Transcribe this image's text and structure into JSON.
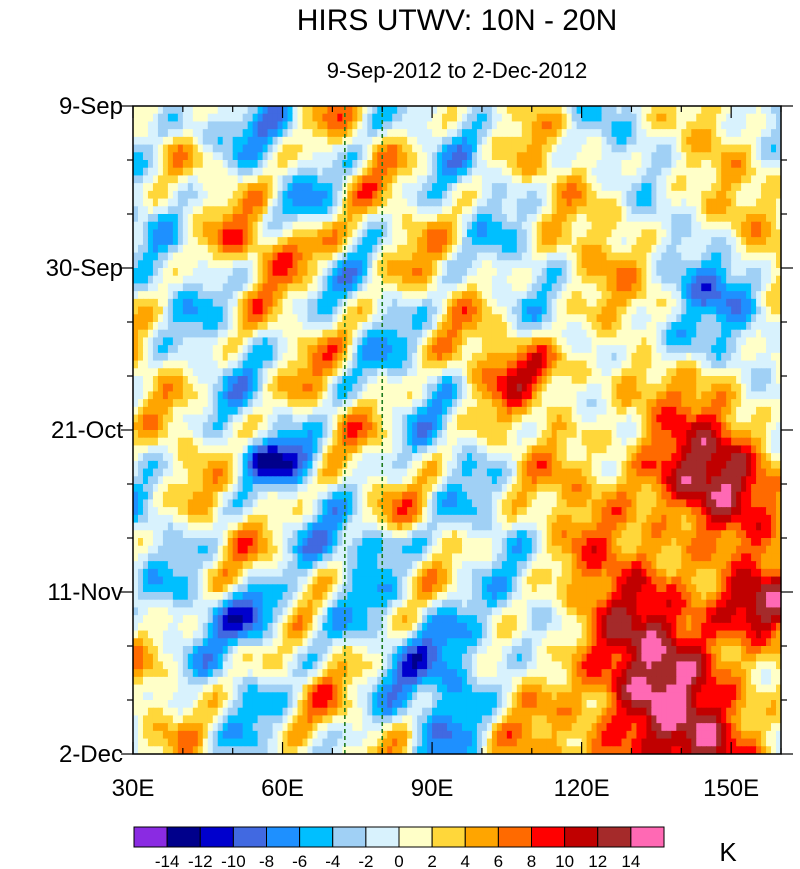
{
  "chart_data": {
    "type": "heatmap",
    "title": "HIRS UTWV: 10N - 20N",
    "subtitle": "9-Sep-2012 to 2-Dec-2012",
    "xlabel": "",
    "ylabel": "",
    "x_range": [
      30,
      160
    ],
    "y_range_days": [
      0,
      84
    ],
    "x_ticks": [
      {
        "value": 30,
        "label": "30E"
      },
      {
        "value": 60,
        "label": "60E"
      },
      {
        "value": 90,
        "label": "90E"
      },
      {
        "value": 120,
        "label": "120E"
      },
      {
        "value": 150,
        "label": "150E"
      }
    ],
    "y_ticks": [
      {
        "value": 0,
        "label": "9-Sep"
      },
      {
        "value": 21,
        "label": "30-Sep"
      },
      {
        "value": 42,
        "label": "21-Oct"
      },
      {
        "value": 63,
        "label": "11-Nov"
      },
      {
        "value": 84,
        "label": "2-Dec"
      }
    ],
    "reference_lines_lon": [
      72.5,
      80
    ],
    "colorbar": {
      "unit": "K",
      "levels": [
        -14,
        -12,
        -10,
        -8,
        -6,
        -4,
        -2,
        0,
        2,
        4,
        6,
        8,
        10,
        12,
        14
      ],
      "labels": [
        "-14",
        "-12",
        "-10",
        "-8",
        "-6",
        "-4",
        "-2",
        "0",
        "2",
        "4",
        "6",
        "8",
        "10",
        "12",
        "14"
      ],
      "colors": [
        "#8a2be2",
        "#00008b",
        "#0000cd",
        "#4169e1",
        "#1e90ff",
        "#00bfff",
        "#a0d0f5",
        "#d8f2fd",
        "#ffffc8",
        "#ffd73a",
        "#ffa500",
        "#ff6a00",
        "#ff0000",
        "#c00000",
        "#a52a2a",
        "#ff69b4"
      ]
    }
  }
}
